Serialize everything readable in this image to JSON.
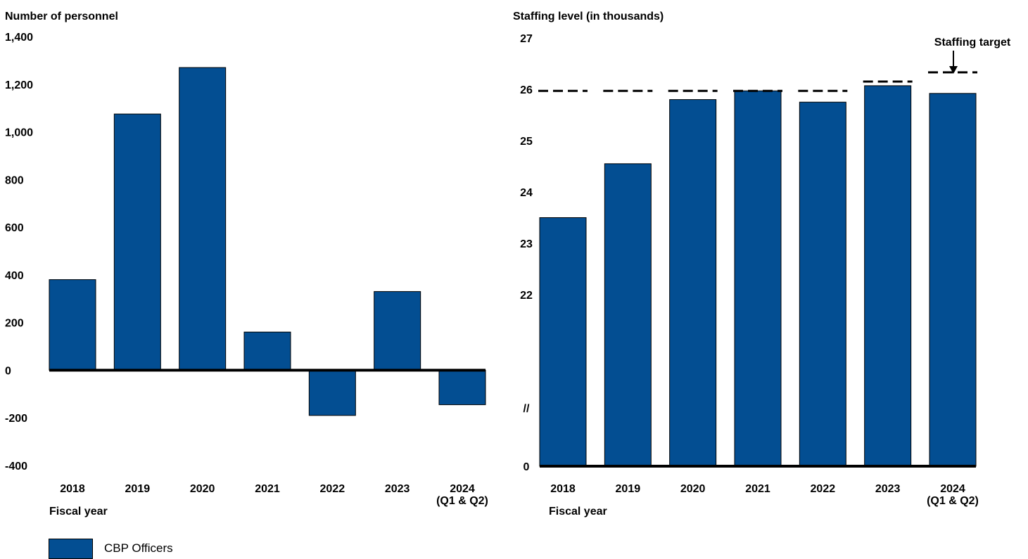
{
  "colors": {
    "bar": "#034E92",
    "axis": "#000000",
    "target_line": "#000000"
  },
  "chart_data": [
    {
      "type": "bar",
      "ylabel": "Number of personnel",
      "xlabel": "Fiscal year",
      "categories": [
        "2018",
        "2019",
        "2020",
        "2021",
        "2022",
        "2023",
        "2024\n(Q1 & Q2)"
      ],
      "series": [
        {
          "name": "CBP Officers",
          "values": [
            380,
            1075,
            1270,
            160,
            -190,
            330,
            -145
          ]
        }
      ],
      "ylim": [
        -400,
        1400
      ],
      "yticks": [
        "1,400",
        "1,200",
        "1,000",
        "800",
        "600",
        "400",
        "200",
        "0",
        "-200",
        "-400"
      ],
      "grid": false
    },
    {
      "type": "bar",
      "ylabel": "Staffing level (in thousands)",
      "xlabel": "Fiscal year",
      "categories": [
        "2018",
        "2019",
        "2020",
        "2021",
        "2022",
        "2023",
        "2024\n(Q1 & Q2)"
      ],
      "series": [
        {
          "name": "CBP Officers",
          "values": [
            23.5,
            24.55,
            25.8,
            25.97,
            25.75,
            26.07,
            25.92
          ]
        }
      ],
      "targets": [
        25.97,
        25.97,
        25.97,
        25.97,
        25.97,
        26.15,
        26.33
      ],
      "target_annotation": "Staffing target",
      "axis_break": "//",
      "ylim": [
        21,
        27
      ],
      "yticks": [
        "27",
        "26",
        "25",
        "24",
        "23",
        "22",
        "//",
        "0"
      ],
      "grid": false
    }
  ],
  "legend": {
    "label": "CBP Officers"
  }
}
